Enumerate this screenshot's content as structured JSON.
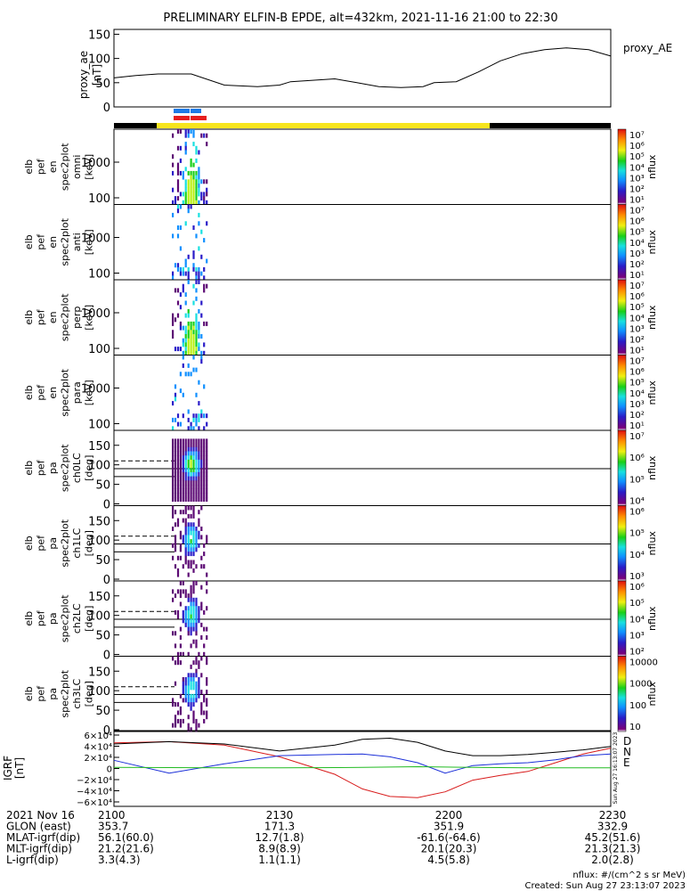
{
  "title": "PRELIMINARY ELFIN-B EPDE, alt=432km, 2021-11-16 21:00 to 22:30",
  "colors": {
    "axis": "#000000",
    "sunlight_bar": "#f7e51d",
    "eclipse_bar": "#000000",
    "science_zone_blue": "#1e7ae6",
    "science_zone_red": "#e61e1e",
    "igrf_D": "#d81b1b",
    "igrf_N": "#1b2fd8",
    "igrf_E": "#22bb22",
    "igrf_total": "#000000"
  },
  "ae_panel": {
    "ylabel_line1": "proxy_ae",
    "ylabel_line2": "[nT]",
    "legend": "proxy_AE",
    "ticks": [
      "150",
      "100",
      "50",
      "0"
    ],
    "ylim": [
      0,
      160
    ]
  },
  "chart_data": [
    {
      "type": "line",
      "name": "proxy_ae",
      "x_minutes": [
        0,
        4,
        8,
        14,
        20,
        26,
        30,
        32,
        36,
        40,
        44,
        48,
        52,
        56,
        58,
        62,
        66,
        70,
        74,
        78,
        82,
        86,
        90
      ],
      "values": [
        60,
        65,
        68,
        68,
        45,
        42,
        45,
        52,
        55,
        58,
        50,
        42,
        40,
        42,
        50,
        52,
        72,
        95,
        110,
        118,
        122,
        118,
        105
      ],
      "ylim": [
        0,
        160
      ]
    },
    {
      "type": "heatmap",
      "panels": [
        {
          "label": [
            "elb",
            "pef",
            "en",
            "spec2plot",
            "omni",
            "[keV]"
          ],
          "ticks": [
            "1000",
            "100"
          ],
          "kind": "energy",
          "cb_ticks": [
            "10^7",
            "10^6",
            "10^5",
            "10^4",
            "10^3",
            "10^2",
            "10^1"
          ],
          "cb_label": "nflux"
        },
        {
          "label": [
            "elb",
            "pef",
            "en",
            "spec2plot",
            "anti",
            "[keV]"
          ],
          "ticks": [
            "1000",
            "100"
          ],
          "kind": "energy_sparse",
          "cb_ticks": [
            "10^7",
            "10^6",
            "10^5",
            "10^4",
            "10^3",
            "10^2",
            "10^1"
          ],
          "cb_label": "nflux"
        },
        {
          "label": [
            "elb",
            "pef",
            "en",
            "spec2plot",
            "perp",
            "[keV]"
          ],
          "ticks": [
            "1000",
            "100"
          ],
          "kind": "energy",
          "cb_ticks": [
            "10^7",
            "10^6",
            "10^5",
            "10^4",
            "10^3",
            "10^2",
            "10^1"
          ],
          "cb_label": "nflux"
        },
        {
          "label": [
            "elb",
            "pef",
            "en",
            "spec2plot",
            "para",
            "[keV]"
          ],
          "ticks": [
            "1000",
            "100"
          ],
          "kind": "energy_sparse",
          "cb_ticks": [
            "10^7",
            "10^6",
            "10^5",
            "10^4",
            "10^3",
            "10^2",
            "10^1"
          ],
          "cb_label": "nflux"
        },
        {
          "label": [
            "elb",
            "pef",
            "pa",
            "spec2plot",
            "ch0LC",
            "[deg]"
          ],
          "ticks": [
            "150",
            "100",
            "50",
            "0"
          ],
          "kind": "pitch_dense",
          "cb_ticks": [
            "10^7",
            "10^6",
            "10^5",
            "10^4"
          ],
          "cb_label": "nflux"
        },
        {
          "label": [
            "elb",
            "pef",
            "pa",
            "spec2plot",
            "ch1LC",
            "[deg]"
          ],
          "ticks": [
            "150",
            "100",
            "50",
            "0"
          ],
          "kind": "pitch",
          "cb_ticks": [
            "10^6",
            "10^5",
            "10^4",
            "10^3"
          ],
          "cb_label": "nflux"
        },
        {
          "label": [
            "elb",
            "pef",
            "pa",
            "spec2plot",
            "ch2LC",
            "[deg]"
          ],
          "ticks": [
            "150",
            "100",
            "50",
            "0"
          ],
          "kind": "pitch",
          "cb_ticks": [
            "10^6",
            "10^5",
            "10^4",
            "10^3",
            "10^2"
          ],
          "cb_label": "nflux"
        },
        {
          "label": [
            "elb",
            "pef",
            "pa",
            "spec2plot",
            "ch3LC",
            "[deg]"
          ],
          "ticks": [
            "150",
            "100",
            "50",
            "0"
          ],
          "kind": "pitch",
          "cb_ticks": [
            "10000",
            "1000",
            "100",
            "10"
          ],
          "cb_label": "nflux"
        }
      ]
    },
    {
      "type": "line",
      "name": "IGRF",
      "ylabel_line1": "IGRF",
      "ylabel_line2": "[nT]",
      "ticks": [
        "6×10^4",
        "4×10^4",
        "2×10^4",
        "0",
        "−2×10^4",
        "−4×10^4",
        "−6×10^4"
      ],
      "ylim": [
        -65000,
        65000
      ],
      "x_minutes": [
        0,
        10,
        20,
        30,
        40,
        45,
        50,
        55,
        60,
        65,
        70,
        75,
        80,
        85,
        90
      ],
      "series": [
        {
          "name": "D",
          "values": [
            44000,
            46000,
            40000,
            20000,
            -10000,
            -35000,
            -48000,
            -50000,
            -40000,
            -20000,
            -12000,
            -5000,
            10000,
            25000,
            35000
          ]
        },
        {
          "name": "N",
          "values": [
            14000,
            -8000,
            8000,
            22000,
            24000,
            25000,
            20000,
            10000,
            -8000,
            5000,
            8000,
            10000,
            15000,
            22000,
            25000
          ]
        },
        {
          "name": "E",
          "values": [
            2000,
            1500,
            1000,
            1000,
            1500,
            2000,
            2500,
            3000,
            2500,
            2000,
            1500,
            1000,
            1000,
            1000,
            1000
          ]
        },
        {
          "name": "total",
          "values": [
            42000,
            46000,
            42000,
            30000,
            40000,
            50000,
            52000,
            45000,
            30000,
            22000,
            22000,
            24000,
            28000,
            32000,
            38000
          ]
        }
      ],
      "legend": [
        "D",
        "N",
        "E"
      ],
      "side_text": "Sun Aug 27 16:13:07 2023"
    }
  ],
  "footer": {
    "rows": [
      {
        "label": "2021 Nov 16",
        "values": [
          "2100",
          "2130",
          "2200",
          "2230"
        ]
      },
      {
        "label": "GLON (east)",
        "values": [
          "353.7",
          "171.3",
          "351.9",
          "332.9"
        ]
      },
      {
        "label": "MLAT-igrf(dip)",
        "values": [
          "56.1(60.0)",
          "12.7(1.8)",
          "-61.6(-64.6)",
          "45.2(51.6)"
        ]
      },
      {
        "label": "MLT-igrf(dip)",
        "values": [
          "21.2(21.6)",
          "8.9(8.9)",
          "20.1(20.3)",
          "21.3(21.3)"
        ]
      },
      {
        "label": "L-igrf(dip)",
        "values": [
          "3.3(4.3)",
          "1.1(1.1)",
          "4.5(5.8)",
          "2.0(2.8)"
        ]
      }
    ],
    "units_note": "nflux: #/(cm^2 s sr MeV)",
    "created": "Created: Sun Aug 27 23:13:07 2023"
  }
}
